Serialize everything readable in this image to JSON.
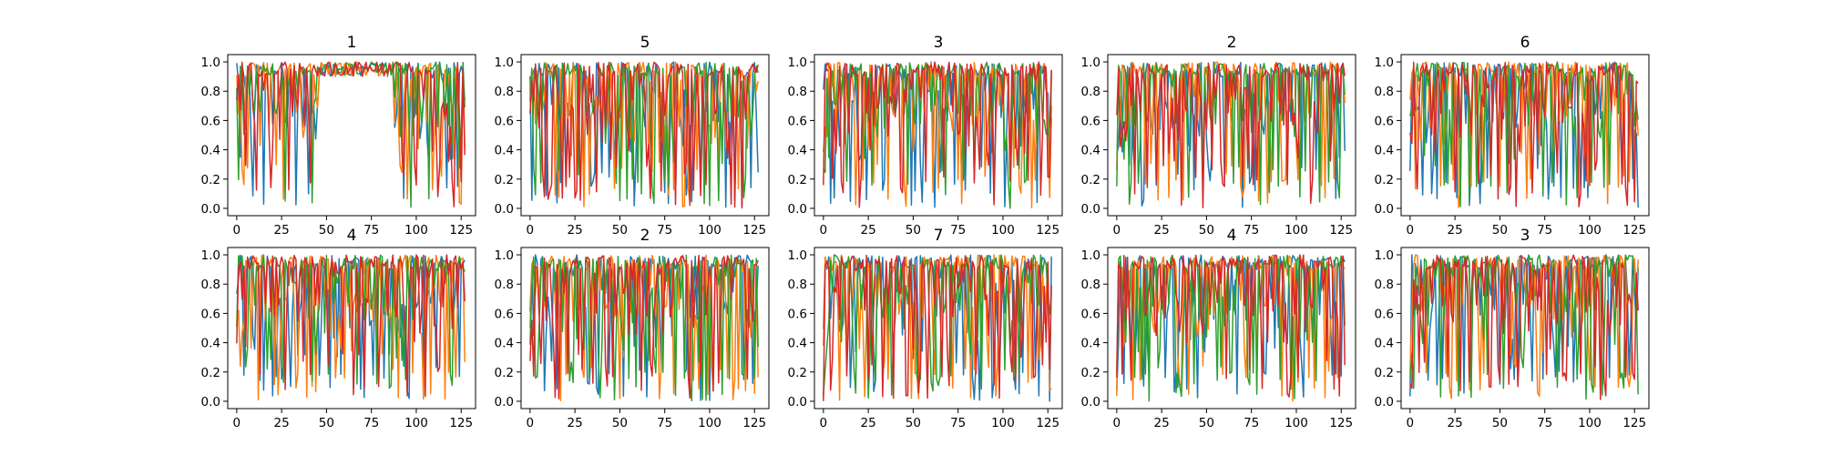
{
  "figure": {
    "background": "#ffffff"
  },
  "chart_data": [
    {
      "type": "line",
      "title": "1",
      "xlim": [
        -5,
        133
      ],
      "ylim": [
        -0.05,
        1.05
      ],
      "xticks": [
        0,
        25,
        50,
        75,
        100,
        125
      ],
      "yticks": [
        0.0,
        0.2,
        0.4,
        0.6,
        0.8,
        1.0
      ],
      "n": 128,
      "series": [
        {
          "color": "#1f77b4"
        },
        {
          "color": "#ff7f0e"
        },
        {
          "color": "#2ca02c"
        },
        {
          "color": "#d62728"
        }
      ]
    },
    {
      "type": "line",
      "title": "5",
      "xlim": [
        -5,
        133
      ],
      "ylim": [
        -0.05,
        1.05
      ],
      "xticks": [
        0,
        25,
        50,
        75,
        100,
        125
      ],
      "yticks": [
        0.0,
        0.2,
        0.4,
        0.6,
        0.8,
        1.0
      ],
      "n": 128,
      "series": [
        {
          "color": "#1f77b4"
        },
        {
          "color": "#ff7f0e"
        },
        {
          "color": "#2ca02c"
        },
        {
          "color": "#d62728"
        }
      ]
    },
    {
      "type": "line",
      "title": "3",
      "xlim": [
        -5,
        133
      ],
      "ylim": [
        -0.05,
        1.05
      ],
      "xticks": [
        0,
        25,
        50,
        75,
        100,
        125
      ],
      "yticks": [
        0.0,
        0.2,
        0.4,
        0.6,
        0.8,
        1.0
      ],
      "n": 128,
      "series": [
        {
          "color": "#1f77b4"
        },
        {
          "color": "#ff7f0e"
        },
        {
          "color": "#2ca02c"
        },
        {
          "color": "#d62728"
        }
      ]
    },
    {
      "type": "line",
      "title": "2",
      "xlim": [
        -5,
        133
      ],
      "ylim": [
        -0.05,
        1.05
      ],
      "xticks": [
        0,
        25,
        50,
        75,
        100,
        125
      ],
      "yticks": [
        0.0,
        0.2,
        0.4,
        0.6,
        0.8,
        1.0
      ],
      "n": 128,
      "series": [
        {
          "color": "#1f77b4"
        },
        {
          "color": "#ff7f0e"
        },
        {
          "color": "#2ca02c"
        },
        {
          "color": "#d62728"
        }
      ]
    },
    {
      "type": "line",
      "title": "6",
      "xlim": [
        -5,
        133
      ],
      "ylim": [
        -0.05,
        1.05
      ],
      "xticks": [
        0,
        25,
        50,
        75,
        100,
        125
      ],
      "yticks": [
        0.0,
        0.2,
        0.4,
        0.6,
        0.8,
        1.0
      ],
      "n": 128,
      "series": [
        {
          "color": "#1f77b4"
        },
        {
          "color": "#ff7f0e"
        },
        {
          "color": "#2ca02c"
        },
        {
          "color": "#d62728"
        }
      ]
    },
    {
      "type": "line",
      "title": "4",
      "xlim": [
        -5,
        133
      ],
      "ylim": [
        -0.05,
        1.05
      ],
      "xticks": [
        0,
        25,
        50,
        75,
        100,
        125
      ],
      "yticks": [
        0.0,
        0.2,
        0.4,
        0.6,
        0.8,
        1.0
      ],
      "n": 128,
      "series": [
        {
          "color": "#1f77b4"
        },
        {
          "color": "#ff7f0e"
        },
        {
          "color": "#2ca02c"
        },
        {
          "color": "#d62728"
        }
      ]
    },
    {
      "type": "line",
      "title": "2",
      "xlim": [
        -5,
        133
      ],
      "ylim": [
        -0.05,
        1.05
      ],
      "xticks": [
        0,
        25,
        50,
        75,
        100,
        125
      ],
      "yticks": [
        0.0,
        0.2,
        0.4,
        0.6,
        0.8,
        1.0
      ],
      "n": 128,
      "series": [
        {
          "color": "#1f77b4"
        },
        {
          "color": "#ff7f0e"
        },
        {
          "color": "#2ca02c"
        },
        {
          "color": "#d62728"
        }
      ]
    },
    {
      "type": "line",
      "title": "7",
      "xlim": [
        -5,
        133
      ],
      "ylim": [
        -0.05,
        1.05
      ],
      "xticks": [
        0,
        25,
        50,
        75,
        100,
        125
      ],
      "yticks": [
        0.0,
        0.2,
        0.4,
        0.6,
        0.8,
        1.0
      ],
      "n": 128,
      "series": [
        {
          "color": "#1f77b4"
        },
        {
          "color": "#ff7f0e"
        },
        {
          "color": "#2ca02c"
        },
        {
          "color": "#d62728"
        }
      ]
    },
    {
      "type": "line",
      "title": "4",
      "xlim": [
        -5,
        133
      ],
      "ylim": [
        -0.05,
        1.05
      ],
      "xticks": [
        0,
        25,
        50,
        75,
        100,
        125
      ],
      "yticks": [
        0.0,
        0.2,
        0.4,
        0.6,
        0.8,
        1.0
      ],
      "n": 128,
      "series": [
        {
          "color": "#1f77b4"
        },
        {
          "color": "#ff7f0e"
        },
        {
          "color": "#2ca02c"
        },
        {
          "color": "#d62728"
        }
      ]
    },
    {
      "type": "line",
      "title": "3",
      "xlim": [
        -5,
        133
      ],
      "ylim": [
        -0.05,
        1.05
      ],
      "xticks": [
        0,
        25,
        50,
        75,
        100,
        125
      ],
      "yticks": [
        0.0,
        0.2,
        0.4,
        0.6,
        0.8,
        1.0
      ],
      "n": 128,
      "series": [
        {
          "color": "#1f77b4"
        },
        {
          "color": "#ff7f0e"
        },
        {
          "color": "#2ca02c"
        },
        {
          "color": "#d62728"
        }
      ]
    }
  ]
}
